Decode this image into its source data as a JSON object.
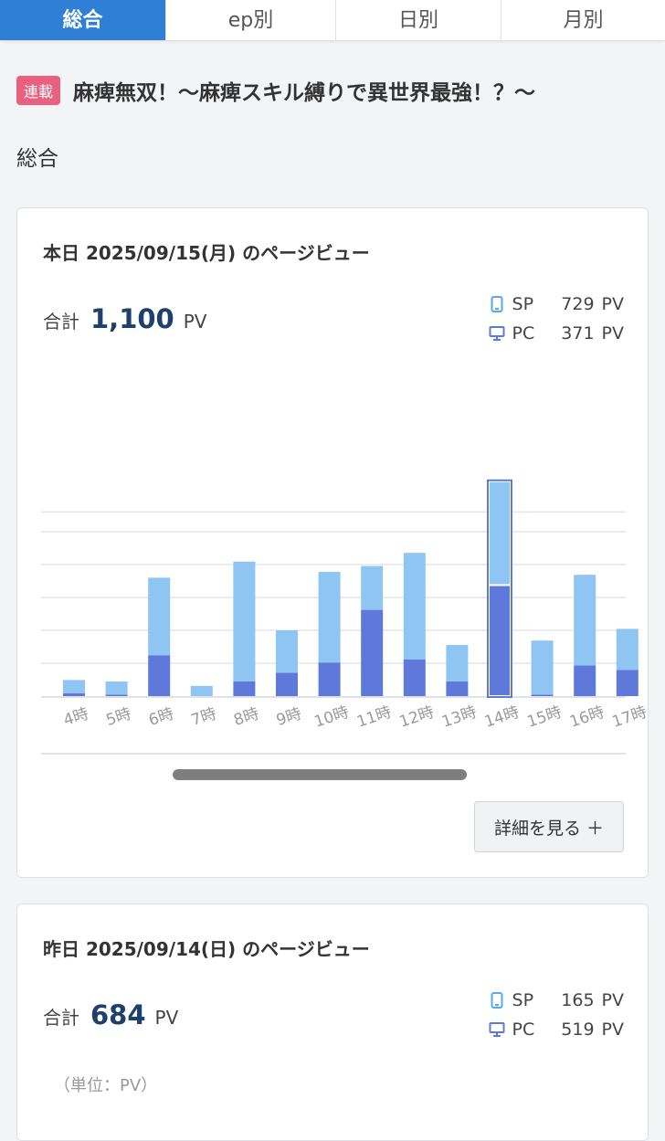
{
  "tabs": [
    {
      "label": "総合",
      "active": true
    },
    {
      "label": "ep別",
      "active": false
    },
    {
      "label": "日別",
      "active": false
    },
    {
      "label": "月別",
      "active": false
    }
  ],
  "series": {
    "badge": "連載",
    "title": "麻痺無双！〜麻痺スキル縛りで異世界最強！？〜"
  },
  "section_label": "総合",
  "colors": {
    "tab_active": "#2f7fd6",
    "sp_bar": "#8ec5f2",
    "pc_bar": "#5f79db",
    "badge": "#e9617f",
    "total_number": "#1f3f6d"
  },
  "today": {
    "title": "本日 2025/09/15(月) のページビュー",
    "total_label": "合計",
    "total_value": "1,100",
    "total_unit": "PV",
    "sp_label": "SP",
    "sp_value": "729",
    "sp_unit": "PV",
    "pc_label": "PC",
    "pc_value": "371",
    "pc_unit": "PV",
    "more_button": "詳細を見る ＋"
  },
  "yesterday": {
    "title": "昨日 2025/09/14(日) のページビュー",
    "total_label": "合計",
    "total_value": "684",
    "total_unit": "PV",
    "sp_label": "SP",
    "sp_value": "165",
    "sp_unit": "PV",
    "pc_label": "PC",
    "pc_value": "519",
    "pc_unit": "PV",
    "unit_note": "（単位：PV）"
  },
  "chart_data": {
    "type": "bar",
    "stacked": true,
    "categories": [
      "4時",
      "5時",
      "6時",
      "7時",
      "8時",
      "9時",
      "10時",
      "11時",
      "12時",
      "13時",
      "14時",
      "15時",
      "16時",
      "17時"
    ],
    "series": [
      {
        "name": "PC",
        "values": [
          2,
          1,
          28,
          0,
          10,
          16,
          23,
          59,
          25,
          10,
          76,
          1,
          21,
          18
        ]
      },
      {
        "name": "SP",
        "values": [
          9,
          9,
          53,
          7,
          82,
          29,
          62,
          30,
          73,
          25,
          71,
          37,
          62,
          28
        ]
      }
    ],
    "selected_category": "14時",
    "ylim": [
      0,
      200
    ],
    "grid": true
  }
}
